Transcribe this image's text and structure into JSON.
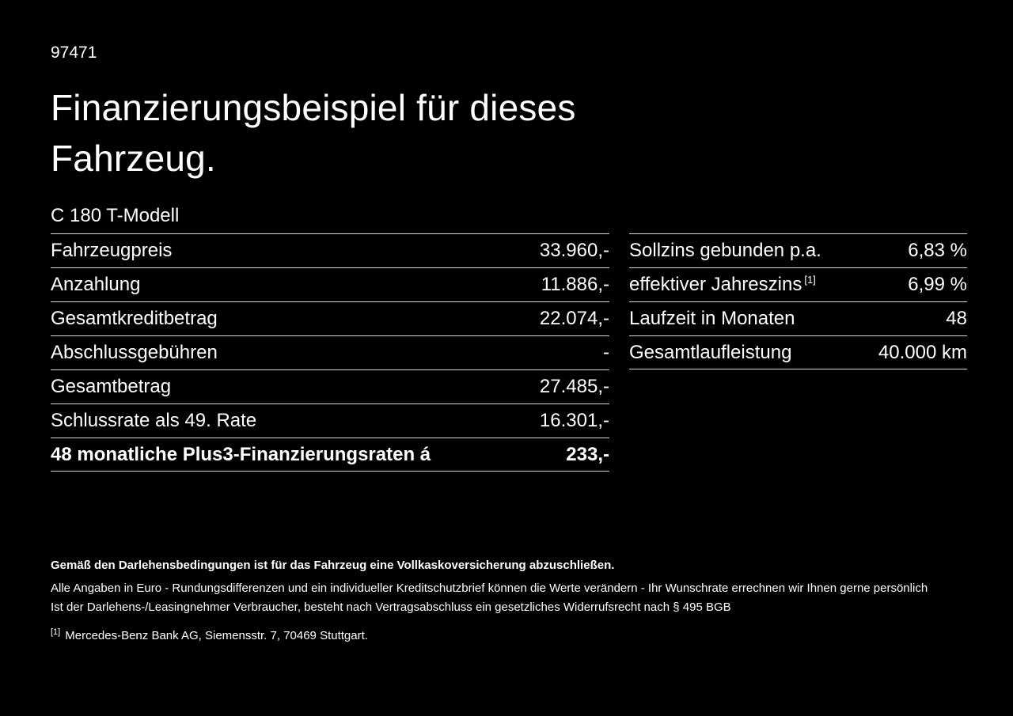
{
  "colors": {
    "background": "#000000",
    "text": "#ffffff",
    "divider": "#d9d9d9"
  },
  "page": {
    "vehicle_id": "97471",
    "title": "Finanzierungsbeispiel für dieses Fahrzeug.",
    "model": "C 180 T-Modell"
  },
  "tables": {
    "left": {
      "rows": [
        {
          "label": "Fahrzeugpreis",
          "value": "33.960,-"
        },
        {
          "label": "Anzahlung",
          "value": "11.886,-"
        },
        {
          "label": "Gesamtkreditbetrag",
          "value": "22.074,-"
        },
        {
          "label": "Abschlussgebühren",
          "value": "-"
        },
        {
          "label": "Gesamtbetrag",
          "value": "27.485,-"
        },
        {
          "label": "Schlussrate als 49. Rate",
          "value": "16.301,-"
        },
        {
          "label": "48 monatliche Plus3-Finanzierungsraten á",
          "value": "233,-"
        }
      ]
    },
    "right": {
      "rows": [
        {
          "label": "Sollzins gebunden p.a.",
          "value": "6,83 %"
        },
        {
          "label": "effektiver Jahreszins",
          "sup": "[1]",
          "value": "6,99 %"
        },
        {
          "label": "Laufzeit in Monaten",
          "value": "48"
        },
        {
          "label": "Gesamtlaufleistung",
          "value": "40.000 km"
        }
      ]
    }
  },
  "footer": {
    "insurance_note": "Gemäß den Darlehensbedingungen ist für das Fahrzeug eine Vollkaskoversicherung abzuschließen.",
    "line2": "Alle Angaben in Euro - Rundungsdifferenzen und ein individueller Kreditschutzbrief können die Werte verändern - Ihr Wunschrate errechnen wir Ihnen gerne persönlich",
    "line3": "Ist der Darlehens-/Leasingnehmer Verbraucher, besteht nach Vertragsabschluss ein gesetzliches Widerrufsrecht nach § 495 BGB",
    "footnote_marker": "[1]",
    "footnote_text": "Mercedes-Benz Bank AG, Siemensstr. 7, 70469 Stuttgart."
  }
}
